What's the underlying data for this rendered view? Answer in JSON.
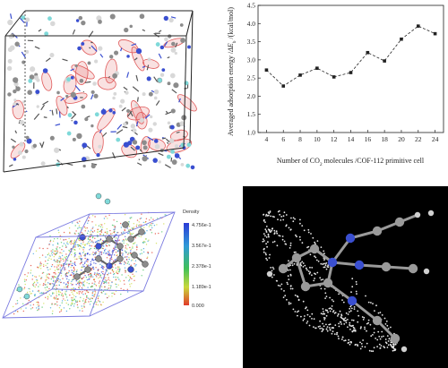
{
  "chart_data": {
    "type": "line",
    "x": [
      4,
      6,
      8,
      10,
      12,
      14,
      16,
      18,
      20,
      22,
      24
    ],
    "y": [
      2.72,
      2.28,
      2.58,
      2.77,
      2.53,
      2.65,
      3.2,
      2.97,
      3.57,
      3.93,
      3.72
    ],
    "xlim": [
      3,
      25
    ],
    "ylim": [
      1.0,
      4.5
    ],
    "xticks": [
      "4",
      "6",
      "8",
      "10",
      "12",
      "14",
      "16",
      "18",
      "20",
      "22",
      "24"
    ],
    "yticks": [
      "1.0",
      "1.5",
      "2.0",
      "2.5",
      "3.0",
      "3.5",
      "4.0",
      "4.5"
    ],
    "xlabel_main": "Number of CO",
    "xlabel_sub": "2",
    "xlabel_rest": " molecules /COF-112 primitive cell",
    "ylabel_main": "Averaged adsorption energy /",
    "ylabel_var": "ΔE",
    "ylabel_sub": "b",
    "ylabel_rest": " /(kcal/mol)",
    "line_style": "dashed",
    "marker": "square",
    "grid": false
  },
  "density_legend": {
    "title": "Density",
    "labels": [
      "4.756e-1",
      "3.567e-1",
      "2.378e-1",
      "1.189e-1",
      "0.000"
    ],
    "colors": [
      "#2b3bd6",
      "#2f9ad8",
      "#3fc05a",
      "#c9d83a",
      "#e23a2a"
    ]
  },
  "colors": {
    "line": "#222222",
    "carbon": "#8c8c8c",
    "nitrogen": "#3a4fd0",
    "hydrogen": "#e8e8e8",
    "highlight": "#e05a5a",
    "cell_edge": "#7a7ae0"
  }
}
